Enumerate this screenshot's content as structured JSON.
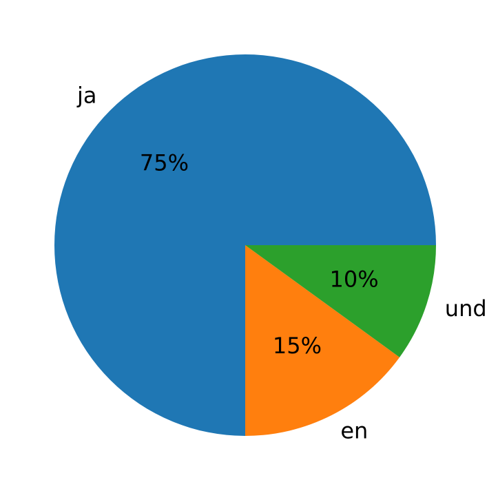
{
  "chart_data": {
    "type": "pie",
    "categories": [
      "ja",
      "en",
      "und"
    ],
    "values": [
      75,
      15,
      10
    ],
    "value_labels": [
      "75%",
      "15%",
      "10%"
    ],
    "colors": [
      "#1f77b4",
      "#ff7f0e",
      "#2ca02c"
    ]
  }
}
